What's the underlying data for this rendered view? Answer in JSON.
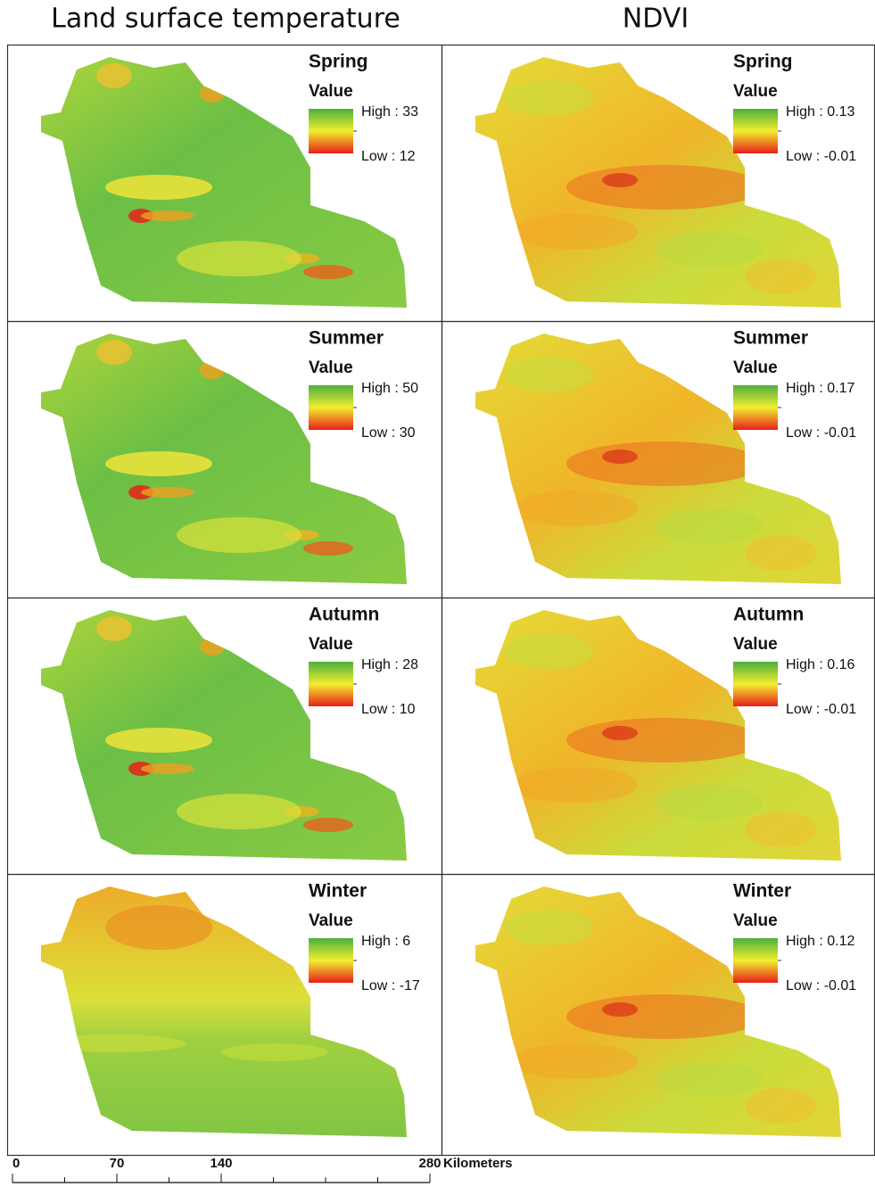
{
  "columns": [
    {
      "title": "Land surface temperature",
      "panels": [
        {
          "season": "Spring",
          "legend_title": "Value",
          "high": "High : 33",
          "low": "Low : 12"
        },
        {
          "season": "Summer",
          "legend_title": "Value",
          "high": "High : 50",
          "low": "Low : 30"
        },
        {
          "season": "Autumn",
          "legend_title": "Value",
          "high": "High : 28",
          "low": "Low : 10"
        },
        {
          "season": "Winter",
          "legend_title": "Value",
          "high": "High : 6",
          "low": "Low : -17"
        }
      ]
    },
    {
      "title": "NDVI",
      "panels": [
        {
          "season": "Spring",
          "legend_title": "Value",
          "high": "High : 0.13",
          "low": "Low : -0.01"
        },
        {
          "season": "Summer",
          "legend_title": "Value",
          "high": "High : 0.17",
          "low": "Low : -0.01"
        },
        {
          "season": "Autumn",
          "legend_title": "Value",
          "high": "High : 0.16",
          "low": "Low : -0.01"
        },
        {
          "season": "Winter",
          "legend_title": "Value",
          "high": "High : 0.12",
          "low": "Low : -0.01"
        }
      ]
    }
  ],
  "scale_bar": {
    "ticks": [
      0,
      70,
      140,
      280
    ],
    "unit": "Kilometers"
  }
}
